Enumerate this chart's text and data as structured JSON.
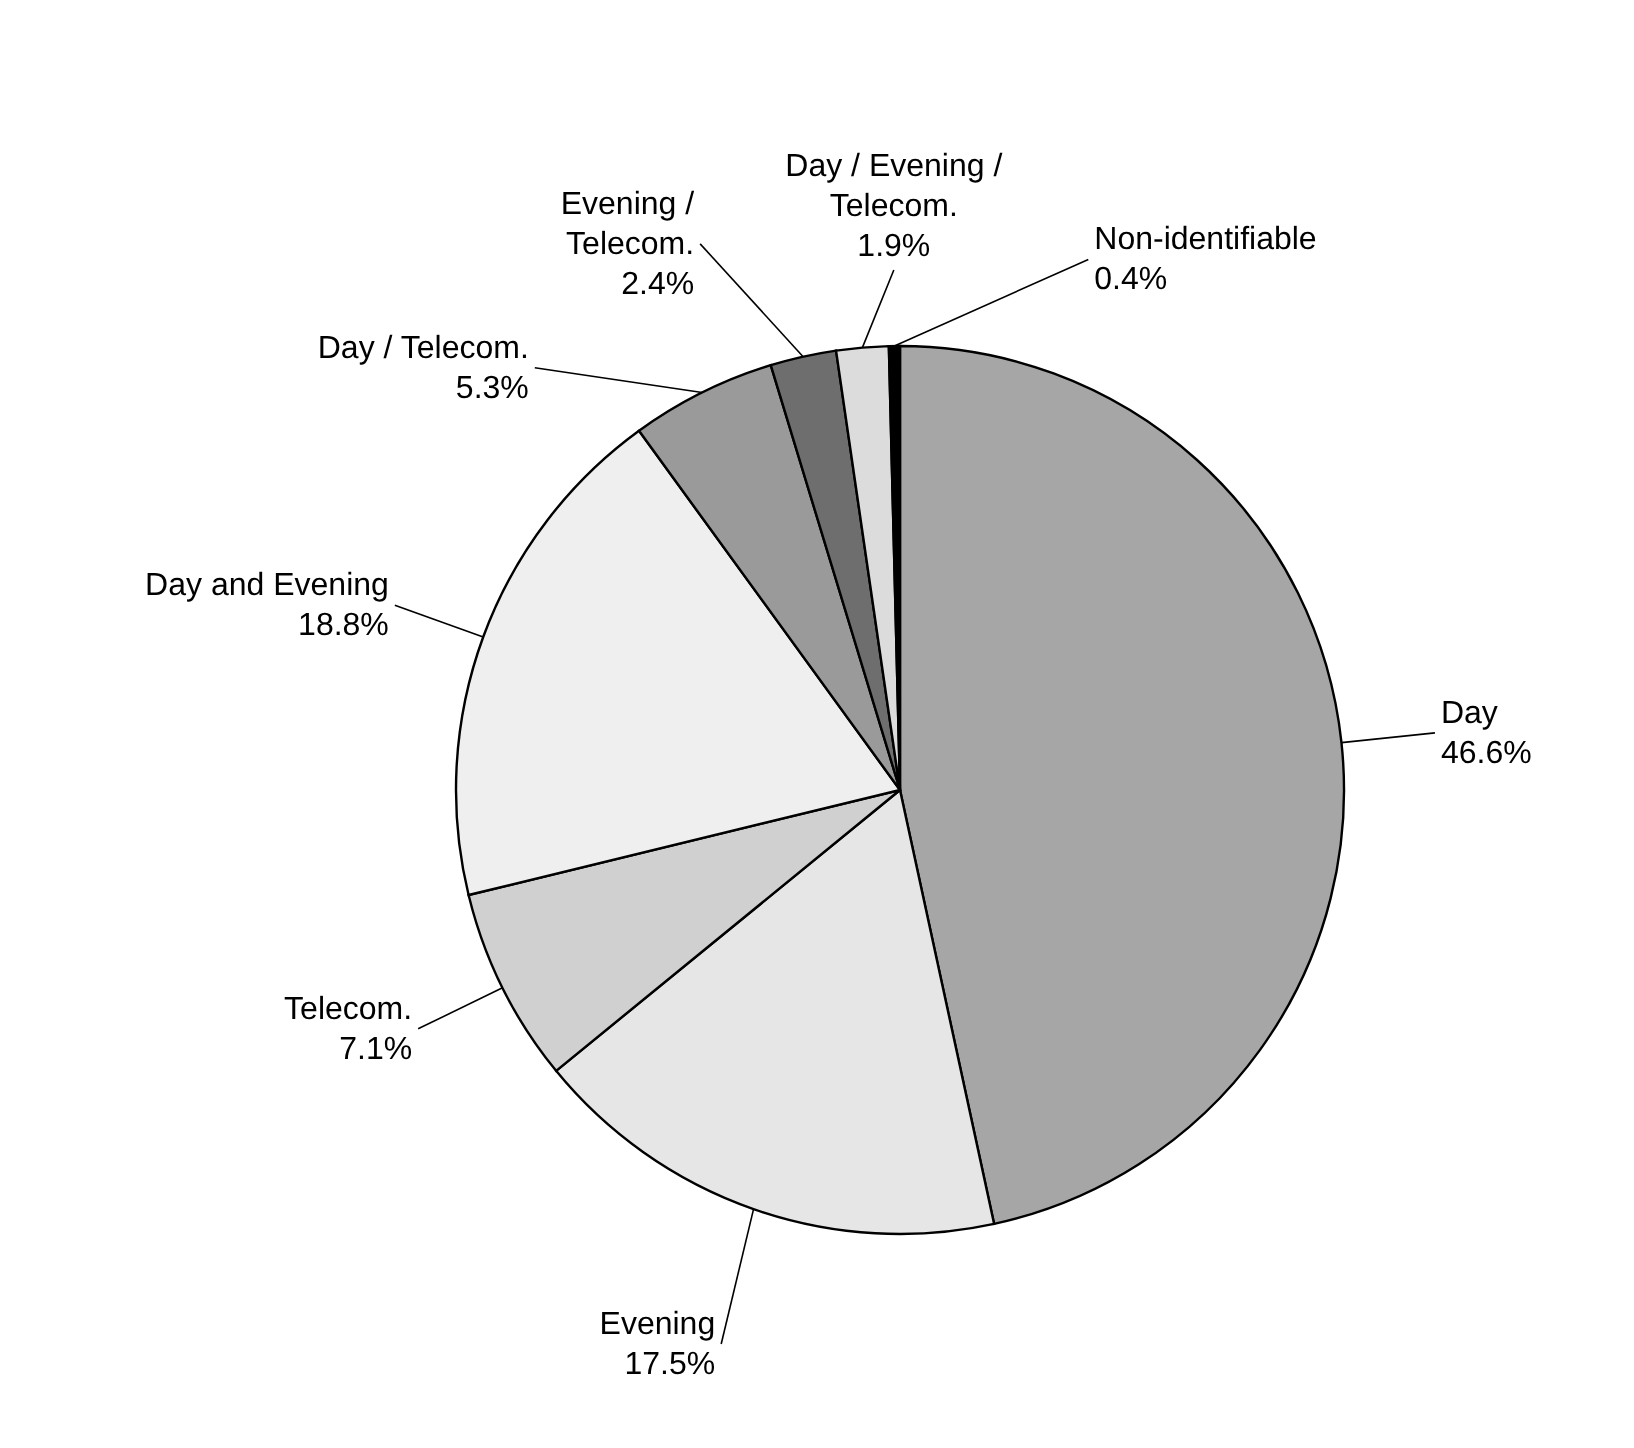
{
  "chart_data": {
    "type": "pie",
    "categories": [
      "Day",
      "Evening",
      "Telecom.",
      "Day and Evening",
      "Day / Telecom.",
      "Evening / Telecom.",
      "Day / Evening / Telecom.",
      "Non-identifiable"
    ],
    "values": [
      46.6,
      17.5,
      7.1,
      18.8,
      5.3,
      2.4,
      1.9,
      0.4
    ],
    "value_labels": [
      "46.6%",
      "17.5%",
      "7.1%",
      "18.8%",
      "5.3%",
      "2.4%",
      "1.9%",
      "0.4%"
    ],
    "colors": [
      "#a6a6a6",
      "#e6e6e6",
      "#d0d0d0",
      "#efefef",
      "#9a9a9a",
      "#6e6e6e",
      "#dcdcdc",
      "#000000"
    ]
  }
}
